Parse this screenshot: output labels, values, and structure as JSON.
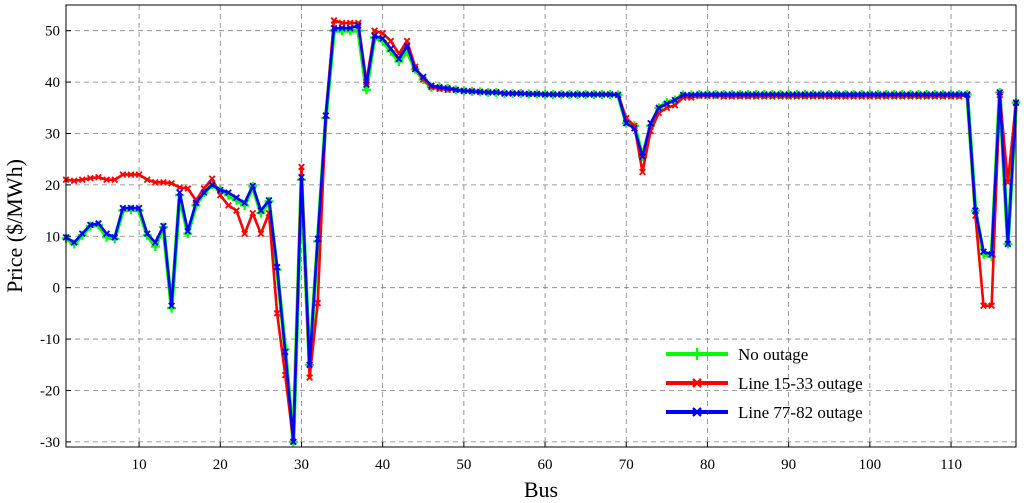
{
  "chart_data": {
    "type": "line",
    "title": "",
    "xlabel": "Bus",
    "ylabel": "Price ($/MWh)",
    "xlim": [
      1,
      118
    ],
    "ylim": [
      -31,
      55
    ],
    "xticks": [
      10,
      20,
      30,
      40,
      50,
      60,
      70,
      80,
      90,
      100,
      110
    ],
    "yticks": [
      -30,
      -20,
      -10,
      0,
      10,
      20,
      30,
      40,
      50
    ],
    "grid": true,
    "legend_position": "bottom-center",
    "x": [
      1,
      2,
      3,
      4,
      5,
      6,
      7,
      8,
      9,
      10,
      11,
      12,
      13,
      14,
      15,
      16,
      17,
      18,
      19,
      20,
      21,
      22,
      23,
      24,
      25,
      26,
      27,
      28,
      29,
      30,
      31,
      32,
      33,
      34,
      35,
      36,
      37,
      38,
      39,
      40,
      41,
      42,
      43,
      44,
      45,
      46,
      47,
      48,
      49,
      50,
      51,
      52,
      53,
      54,
      55,
      56,
      57,
      58,
      59,
      60,
      61,
      62,
      63,
      64,
      65,
      66,
      67,
      68,
      69,
      70,
      71,
      72,
      73,
      74,
      75,
      76,
      77,
      78,
      79,
      80,
      81,
      82,
      83,
      84,
      85,
      86,
      87,
      88,
      89,
      90,
      91,
      92,
      93,
      94,
      95,
      96,
      97,
      98,
      99,
      100,
      101,
      102,
      103,
      104,
      105,
      106,
      107,
      108,
      109,
      110,
      111,
      112,
      113,
      114,
      115,
      116,
      117,
      118
    ],
    "series": [
      {
        "name": "No outage",
        "color": "#00ff00",
        "marker": "plus",
        "values": [
          9.6,
          8.5,
          10.2,
          12,
          12.2,
          9.8,
          9.5,
          15,
          15.2,
          15,
          10.2,
          8,
          11.8,
          -4,
          18,
          10.5,
          16,
          18.5,
          20,
          19,
          18,
          17,
          16,
          19.7,
          14.5,
          16.8,
          3.5,
          -12,
          -30,
          21,
          -15,
          9,
          33,
          50,
          50,
          50,
          50,
          38.5,
          48.7,
          48,
          46,
          44,
          46,
          42.5,
          40.5,
          39,
          39,
          38.8,
          38.5,
          38.3,
          38.2,
          38.1,
          38,
          38,
          37.8,
          37.8,
          37.8,
          37.7,
          37.7,
          37.6,
          37.6,
          37.6,
          37.6,
          37.6,
          37.6,
          37.6,
          37.6,
          37.6,
          37.5,
          32,
          31.5,
          25.5,
          31.5,
          35,
          36,
          36.5,
          37.5,
          37.5,
          37.6,
          37.6,
          37.6,
          37.6,
          37.6,
          37.6,
          37.6,
          37.6,
          37.6,
          37.6,
          37.6,
          37.6,
          37.6,
          37.6,
          37.6,
          37.6,
          37.6,
          37.6,
          37.6,
          37.6,
          37.6,
          37.6,
          37.6,
          37.6,
          37.6,
          37.6,
          37.6,
          37.6,
          37.6,
          37.6,
          37.6,
          37.6,
          37.6,
          37.6,
          15,
          6.5,
          6,
          38,
          8.5,
          36
        ]
      },
      {
        "name": "Line 15-33 outage",
        "color": "#ff0000",
        "marker": "x",
        "values": [
          21,
          20.8,
          21,
          21.3,
          21.5,
          21,
          21,
          22,
          22,
          22,
          21,
          20.5,
          20.5,
          20.3,
          19.5,
          19.3,
          17,
          19.3,
          21.2,
          18,
          16,
          15,
          10.5,
          14.5,
          10.5,
          14.5,
          -5,
          -17,
          -30,
          23.5,
          -17.5,
          -3,
          33.5,
          52,
          51.5,
          51.5,
          51.5,
          40,
          50,
          49.5,
          48,
          45.5,
          48,
          43,
          40.5,
          39,
          38.7,
          38.5,
          38.5,
          38.3,
          38.2,
          38.1,
          38,
          38,
          37.8,
          37.8,
          37.8,
          37.7,
          37.7,
          37.6,
          37.6,
          37.6,
          37.6,
          37.6,
          37.6,
          37.6,
          37.6,
          37.6,
          37.5,
          33,
          31.5,
          22.5,
          30.5,
          34,
          35,
          35.5,
          37,
          37,
          37.3,
          37.3,
          37.3,
          37.2,
          37.2,
          37.2,
          37.2,
          37.2,
          37.2,
          37.2,
          37.2,
          37.2,
          37.2,
          37.2,
          37.2,
          37.2,
          37.2,
          37.2,
          37.2,
          37.2,
          37.2,
          37.2,
          37.2,
          37.2,
          37.2,
          37.2,
          37.2,
          37.2,
          37.2,
          37.2,
          37.2,
          37.2,
          37.2,
          37.5,
          14,
          -3.5,
          -3.5,
          37.5,
          20.5,
          36
        ]
      },
      {
        "name": "Line 77-82 outage",
        "color": "#0000ff",
        "marker": "x",
        "values": [
          9.8,
          8.8,
          10.5,
          12.2,
          12.5,
          10.5,
          9.8,
          15.5,
          15.5,
          15.5,
          10.5,
          8.8,
          12,
          -3.5,
          18.5,
          11,
          16.5,
          18.5,
          20,
          19,
          18.5,
          17.5,
          16.5,
          19.8,
          15,
          17,
          4,
          -12.5,
          -30,
          21.5,
          -15,
          9.5,
          33.5,
          50.5,
          50.5,
          50.5,
          51,
          39.5,
          49,
          48.5,
          46.5,
          44.5,
          47,
          42.5,
          41,
          39.3,
          39,
          38.8,
          38.5,
          38.3,
          38.2,
          38.1,
          38,
          38,
          37.8,
          37.8,
          37.8,
          37.7,
          37.7,
          37.6,
          37.6,
          37.6,
          37.6,
          37.6,
          37.6,
          37.6,
          37.6,
          37.6,
          37.5,
          32,
          31,
          25.5,
          32,
          35,
          35.8,
          36.5,
          37.5,
          37.5,
          37.6,
          37.6,
          37.6,
          37.6,
          37.6,
          37.6,
          37.6,
          37.6,
          37.6,
          37.6,
          37.6,
          37.6,
          37.6,
          37.6,
          37.6,
          37.6,
          37.6,
          37.6,
          37.6,
          37.6,
          37.6,
          37.6,
          37.6,
          37.6,
          37.6,
          37.6,
          37.6,
          37.6,
          37.6,
          37.6,
          37.6,
          37.6,
          37.6,
          37.6,
          15,
          7,
          6.5,
          38,
          8.5,
          36
        ]
      }
    ]
  }
}
